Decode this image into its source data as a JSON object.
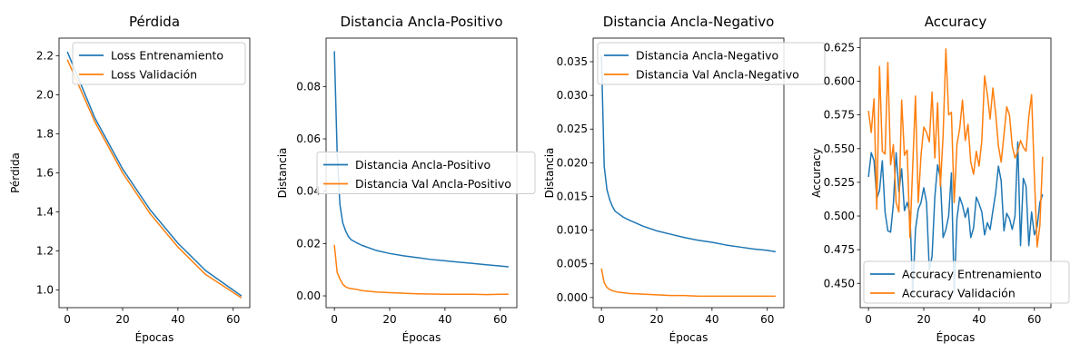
{
  "colors": {
    "train": "#1f77b4",
    "val": "#ff7f0e"
  },
  "chart_data": [
    {
      "type": "line",
      "title": "Pérdida",
      "xlabel": "Épocas",
      "ylabel": "Pérdida",
      "xlim": [
        -3,
        66
      ],
      "ylim": [
        0.91,
        2.29
      ],
      "xticks": [
        0,
        20,
        40,
        60
      ],
      "yticks": [
        1.0,
        1.2,
        1.4,
        1.6,
        1.8,
        2.0,
        2.2
      ],
      "ytick_decimals": 1,
      "legend_position": "top-right",
      "x": [
        0,
        10,
        20,
        30,
        40,
        50,
        63
      ],
      "series": [
        {
          "name": "Loss Entrenamiento",
          "color": "train",
          "values": [
            2.22,
            1.88,
            1.62,
            1.41,
            1.24,
            1.1,
            0.97
          ]
        },
        {
          "name": "Loss Validación",
          "color": "val",
          "values": [
            2.18,
            1.86,
            1.6,
            1.39,
            1.22,
            1.08,
            0.96
          ]
        }
      ]
    },
    {
      "type": "line",
      "title": "Distancia Ancla-Positivo",
      "xlabel": "Épocas",
      "ylabel": "Distancia",
      "xlim": [
        -3,
        66
      ],
      "ylim": [
        -0.0045,
        0.0985
      ],
      "xticks": [
        0,
        20,
        40,
        60
      ],
      "yticks": [
        0.0,
        0.02,
        0.04,
        0.06,
        0.08
      ],
      "ytick_decimals": 2,
      "legend_position": "center-right",
      "x": [
        0,
        1,
        2,
        3,
        4,
        5,
        6,
        8,
        10,
        15,
        20,
        25,
        30,
        35,
        40,
        45,
        50,
        55,
        60,
        63
      ],
      "series": [
        {
          "name": "Distancia Ancla-Positivo",
          "color": "train",
          "values": [
            0.0935,
            0.055,
            0.035,
            0.028,
            0.025,
            0.0228,
            0.0215,
            0.0203,
            0.0193,
            0.0174,
            0.0162,
            0.0153,
            0.0146,
            0.0139,
            0.0134,
            0.0129,
            0.0124,
            0.0119,
            0.0114,
            0.0111
          ]
        },
        {
          "name": "Distancia Val Ancla-Positivo",
          "color": "val",
          "values": [
            0.0195,
            0.009,
            0.0065,
            0.0045,
            0.0035,
            0.003,
            0.0028,
            0.0025,
            0.002,
            0.0015,
            0.0012,
            0.001,
            0.0008,
            0.0007,
            0.0006,
            0.0006,
            0.0006,
            0.0005,
            0.0006,
            0.0006
          ]
        }
      ]
    },
    {
      "type": "line",
      "title": "Distancia Ancla-Negativo",
      "xlabel": "Épocas",
      "ylabel": "Distancia",
      "xlim": [
        -3,
        66
      ],
      "ylim": [
        -0.0015,
        0.0385
      ],
      "xticks": [
        0,
        20,
        40,
        60
      ],
      "yticks": [
        0.0,
        0.005,
        0.01,
        0.015,
        0.02,
        0.025,
        0.03,
        0.035
      ],
      "ytick_decimals": 3,
      "legend_position": "top-left",
      "x": [
        0,
        1,
        2,
        3,
        4,
        5,
        6,
        8,
        10,
        15,
        20,
        25,
        30,
        35,
        40,
        45,
        50,
        55,
        60,
        63
      ],
      "series": [
        {
          "name": "Distancia Ancla-Negativo",
          "color": "train",
          "values": [
            0.036,
            0.0195,
            0.016,
            0.0145,
            0.0135,
            0.0128,
            0.0125,
            0.0119,
            0.0115,
            0.0106,
            0.0099,
            0.0094,
            0.0089,
            0.0085,
            0.0082,
            0.0078,
            0.0075,
            0.0072,
            0.007,
            0.0068
          ]
        },
        {
          "name": "Distancia Val Ancla-Negativo",
          "color": "val",
          "values": [
            0.0043,
            0.0022,
            0.0015,
            0.0012,
            0.001,
            0.0009,
            0.0008,
            0.0007,
            0.0006,
            0.0005,
            0.0004,
            0.0003,
            0.0003,
            0.0002,
            0.0002,
            0.0002,
            0.0002,
            0.0002,
            0.0002,
            0.0002
          ]
        }
      ]
    },
    {
      "type": "line",
      "title": "Accuracy",
      "xlabel": "Épocas",
      "ylabel": "Accuracy",
      "xlim": [
        -3,
        66
      ],
      "ylim": [
        0.432,
        0.632
      ],
      "xticks": [
        0,
        20,
        40,
        60
      ],
      "yticks": [
        0.45,
        0.475,
        0.5,
        0.525,
        0.55,
        0.575,
        0.6,
        0.625
      ],
      "ytick_decimals": 3,
      "legend_position": "bottom-right",
      "x": [
        0,
        1,
        2,
        3,
        4,
        5,
        6,
        7,
        8,
        9,
        10,
        11,
        12,
        13,
        14,
        15,
        16,
        17,
        18,
        19,
        20,
        21,
        22,
        23,
        24,
        25,
        26,
        27,
        28,
        29,
        30,
        31,
        32,
        33,
        34,
        35,
        36,
        37,
        38,
        39,
        40,
        41,
        42,
        43,
        44,
        45,
        46,
        47,
        48,
        49,
        50,
        51,
        52,
        53,
        54,
        55,
        56,
        57,
        58,
        59,
        60,
        61,
        62,
        63
      ],
      "series": [
        {
          "name": "Accuracy Entrenamiento",
          "color": "train",
          "values": [
            0.529,
            0.547,
            0.541,
            0.513,
            0.519,
            0.541,
            0.503,
            0.489,
            0.488,
            0.509,
            0.547,
            0.518,
            0.535,
            0.504,
            0.51,
            0.502,
            0.442,
            0.49,
            0.505,
            0.51,
            0.521,
            0.51,
            0.46,
            0.47,
            0.514,
            0.538,
            0.528,
            0.484,
            0.49,
            0.5,
            0.532,
            0.443,
            0.498,
            0.514,
            0.508,
            0.499,
            0.506,
            0.484,
            0.491,
            0.514,
            0.509,
            0.503,
            0.486,
            0.495,
            0.49,
            0.504,
            0.517,
            0.537,
            0.526,
            0.489,
            0.502,
            0.498,
            0.49,
            0.5,
            0.555,
            0.478,
            0.528,
            0.522,
            0.478,
            0.503,
            0.486,
            0.492,
            0.51,
            0.516
          ]
        },
        {
          "name": "Accuracy Validación",
          "color": "val",
          "values": [
            0.578,
            0.562,
            0.587,
            0.505,
            0.611,
            0.548,
            0.546,
            0.614,
            0.538,
            0.553,
            0.51,
            0.503,
            0.586,
            0.545,
            0.549,
            0.484,
            0.537,
            0.589,
            0.51,
            0.545,
            0.566,
            0.562,
            0.555,
            0.592,
            0.543,
            0.584,
            0.522,
            0.56,
            0.624,
            0.575,
            0.577,
            0.51,
            0.553,
            0.565,
            0.586,
            0.556,
            0.568,
            0.54,
            0.531,
            0.548,
            0.537,
            0.556,
            0.604,
            0.59,
            0.572,
            0.595,
            0.576,
            0.552,
            0.54,
            0.56,
            0.581,
            0.575,
            0.552,
            0.543,
            0.548,
            0.556,
            0.551,
            0.548,
            0.574,
            0.59,
            0.53,
            0.477,
            0.493,
            0.544
          ]
        }
      ]
    }
  ]
}
